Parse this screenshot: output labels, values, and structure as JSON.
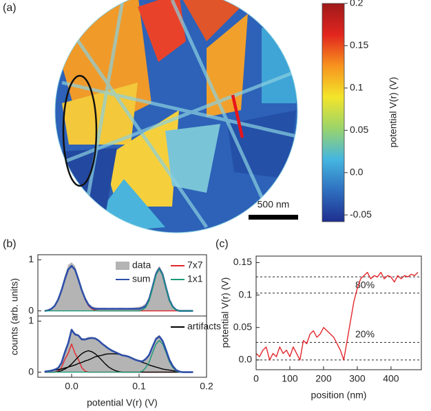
{
  "chart_data": [
    {
      "type": "heatmap",
      "label": "(a)",
      "scale_bar": "500 nm",
      "colorbar": {
        "label": "potential V(r) (V)",
        "lim": [
          -0.058,
          0.2
        ],
        "ticks": [
          -0.05,
          {
            "value": 0,
            "label": "0.0"
          },
          0.05,
          0.1,
          0.15,
          0.2
        ],
        "colormap": [
          "#1e2f8f",
          "#2f6fc0",
          "#45b6e0",
          "#9bd46a",
          "#f3e52a",
          "#f7931e",
          "#e2251f",
          "#9e1a1a"
        ]
      }
    },
    {
      "type": "line",
      "label": "(b)",
      "ylabel": "counts (arb. units)",
      "xlim": [
        -0.05,
        0.2
      ],
      "ylim": [
        -0.1,
        1.1
      ],
      "yticks": [
        0,
        1
      ],
      "x": [
        -0.04,
        -0.035,
        -0.03,
        -0.025,
        -0.02,
        -0.015,
        -0.01,
        -0.005,
        0,
        0.005,
        0.01,
        0.015,
        0.02,
        0.025,
        0.03,
        0.035,
        0.04,
        0.045,
        0.05,
        0.055,
        0.06,
        0.065,
        0.07,
        0.075,
        0.08,
        0.085,
        0.09,
        0.095,
        0.1,
        0.105,
        0.11,
        0.115,
        0.12,
        0.125,
        0.13,
        0.135,
        0.14,
        0.145,
        0.15,
        0.155,
        0.16,
        0.165,
        0.17,
        0.175,
        0.18
      ],
      "series": [
        {
          "name": "data",
          "color": "#b4b4b4",
          "style": "area",
          "values": [
            0.01,
            0.02,
            0.05,
            0.12,
            0.25,
            0.45,
            0.7,
            0.9,
            0.95,
            0.88,
            0.68,
            0.46,
            0.28,
            0.15,
            0.09,
            0.07,
            0.06,
            0.06,
            0.06,
            0.05,
            0.06,
            0.05,
            0.06,
            0.06,
            0.05,
            0.06,
            0.06,
            0.07,
            0.08,
            0.1,
            0.15,
            0.28,
            0.52,
            0.78,
            0.88,
            0.76,
            0.48,
            0.22,
            0.08,
            0.03,
            0.01,
            0,
            0,
            0,
            0
          ]
        },
        {
          "name": "7x7",
          "color": "#e3262b",
          "style": "line",
          "values": [
            0,
            0.01,
            0.04,
            0.1,
            0.22,
            0.4,
            0.62,
            0.81,
            0.88,
            0.81,
            0.62,
            0.4,
            0.22,
            0.1,
            0.04,
            0.01,
            0,
            0,
            0,
            0,
            0,
            0,
            0,
            0,
            0,
            0,
            0,
            0,
            0,
            0,
            0,
            0,
            0,
            0,
            0,
            0,
            0,
            0,
            0,
            0,
            0,
            0,
            0,
            0,
            0
          ]
        },
        {
          "name": "sum",
          "color": "#2e4fa8",
          "style": "line",
          "values": [
            0,
            0.01,
            0.04,
            0.1,
            0.22,
            0.4,
            0.62,
            0.81,
            0.88,
            0.81,
            0.62,
            0.41,
            0.24,
            0.12,
            0.06,
            0.04,
            0.04,
            0.04,
            0.04,
            0.04,
            0.04,
            0.04,
            0.04,
            0.04,
            0.04,
            0.04,
            0.04,
            0.04,
            0.04,
            0.06,
            0.1,
            0.23,
            0.47,
            0.72,
            0.83,
            0.71,
            0.45,
            0.21,
            0.08,
            0.02,
            0,
            0,
            0,
            0,
            0
          ]
        },
        {
          "name": "1x1",
          "color": "#1a9a78",
          "style": "line",
          "values": [
            0,
            0,
            0,
            0,
            0,
            0,
            0,
            0,
            0,
            0,
            0,
            0,
            0,
            0,
            0,
            0,
            0,
            0,
            0,
            0,
            0,
            0,
            0,
            0,
            0,
            0,
            0,
            0,
            0,
            0.02,
            0.07,
            0.2,
            0.44,
            0.7,
            0.82,
            0.7,
            0.44,
            0.2,
            0.07,
            0.02,
            0,
            0,
            0,
            0,
            0
          ]
        }
      ]
    },
    {
      "type": "line",
      "xlabel": "potential V(r) (V)",
      "xlim": [
        -0.05,
        0.2
      ],
      "xticks": [
        {
          "value": 0,
          "label": "0.0"
        },
        0.1,
        0.2
      ],
      "ylim": [
        -0.1,
        1.1
      ],
      "yticks": [
        0,
        1
      ],
      "x": [
        -0.04,
        -0.035,
        -0.03,
        -0.025,
        -0.02,
        -0.015,
        -0.01,
        -0.005,
        0,
        0.005,
        0.01,
        0.015,
        0.02,
        0.025,
        0.03,
        0.035,
        0.04,
        0.045,
        0.05,
        0.055,
        0.06,
        0.065,
        0.07,
        0.075,
        0.08,
        0.085,
        0.09,
        0.095,
        0.1,
        0.105,
        0.11,
        0.115,
        0.12,
        0.125,
        0.13,
        0.135,
        0.14,
        0.145,
        0.15,
        0.155,
        0.16,
        0.165,
        0.17,
        0.175,
        0.18
      ],
      "series": [
        {
          "color": "#b4b4b4",
          "style": "area",
          "values": [
            0.02,
            0.03,
            0.05,
            0.07,
            0.1,
            0.2,
            0.42,
            0.6,
            0.86,
            0.77,
            0.74,
            0.67,
            0.66,
            0.69,
            0.69,
            0.68,
            0.64,
            0.58,
            0.53,
            0.48,
            0.44,
            0.41,
            0.38,
            0.35,
            0.34,
            0.32,
            0.29,
            0.26,
            0.24,
            0.23,
            0.28,
            0.36,
            0.53,
            0.68,
            0.73,
            0.64,
            0.45,
            0.26,
            0.14,
            0.05,
            0.02,
            0.01,
            0,
            0,
            0
          ]
        },
        {
          "color": "#e3262b",
          "style": "line",
          "values": [
            0,
            0,
            0,
            0,
            0.02,
            0.09,
            0.25,
            0.37,
            0.55,
            0.37,
            0.25,
            0.09,
            0.02,
            0,
            0,
            0,
            0,
            0,
            0,
            0,
            0,
            0,
            0,
            0,
            0,
            0,
            0,
            0,
            0,
            0,
            0,
            0,
            0,
            0,
            0,
            0,
            0,
            0,
            0,
            0,
            0,
            0,
            0,
            0,
            0
          ]
        },
        {
          "name": "artifacts",
          "color": "#000000",
          "style": "line",
          "values": [
            0,
            0,
            0,
            0,
            0.01,
            0.03,
            0.06,
            0.1,
            0.16,
            0.23,
            0.3,
            0.36,
            0.4,
            0.42,
            0.4,
            0.36,
            0.3,
            0.23,
            0.16,
            0.1,
            0.06,
            0.03,
            0.01,
            0,
            0,
            0,
            0,
            0,
            0,
            0,
            0,
            0,
            0,
            0,
            0,
            0,
            0,
            0,
            0,
            0,
            0,
            0,
            0,
            0,
            0
          ]
        },
        {
          "color": "#000000",
          "style": "line",
          "values": [
            0.01,
            0.02,
            0.03,
            0.04,
            0.05,
            0.06,
            0.08,
            0.1,
            0.12,
            0.14,
            0.17,
            0.19,
            0.22,
            0.24,
            0.27,
            0.3,
            0.32,
            0.33,
            0.35,
            0.36,
            0.36,
            0.36,
            0.35,
            0.33,
            0.32,
            0.3,
            0.27,
            0.24,
            0.22,
            0.19,
            0.17,
            0.14,
            0.12,
            0.1,
            0.08,
            0.06,
            0.05,
            0.04,
            0.03,
            0.02,
            0.01,
            0,
            0,
            0,
            0
          ]
        },
        {
          "color": "#1a9a78",
          "style": "line",
          "values": [
            0,
            0,
            0,
            0,
            0,
            0,
            0,
            0,
            0,
            0,
            0,
            0,
            0,
            0,
            0,
            0,
            0,
            0,
            0,
            0,
            0,
            0,
            0,
            0,
            0,
            0,
            0,
            0,
            0,
            0.02,
            0.09,
            0.2,
            0.38,
            0.55,
            0.62,
            0.55,
            0.38,
            0.2,
            0.09,
            0.02,
            0,
            0,
            0,
            0,
            0
          ]
        },
        {
          "color": "#2e4fa8",
          "style": "line",
          "values": [
            0.01,
            0.02,
            0.03,
            0.05,
            0.08,
            0.18,
            0.39,
            0.57,
            0.83,
            0.74,
            0.72,
            0.64,
            0.64,
            0.66,
            0.67,
            0.66,
            0.62,
            0.56,
            0.51,
            0.46,
            0.42,
            0.39,
            0.36,
            0.33,
            0.32,
            0.3,
            0.27,
            0.24,
            0.22,
            0.21,
            0.26,
            0.34,
            0.5,
            0.65,
            0.7,
            0.61,
            0.43,
            0.24,
            0.12,
            0.04,
            0.01,
            0,
            0,
            0,
            0
          ]
        }
      ]
    },
    {
      "type": "line",
      "label": "(c)",
      "xlabel": "position (nm)",
      "ylabel": "potential V(r) (V)",
      "xlim": [
        0,
        490
      ],
      "xticks": [
        0,
        100,
        200,
        300,
        400
      ],
      "ylim": [
        -0.015,
        0.16
      ],
      "yticks": [
        {
          "value": 0,
          "label": "0.0"
        },
        0.05,
        0.1,
        0.15
      ],
      "hlines": [
        {
          "value": 0.128
        },
        {
          "value": 0.103,
          "label": "80%"
        },
        {
          "value": 0.027,
          "label": "20%"
        },
        {
          "value": 0
        }
      ],
      "x": [
        0,
        10,
        20,
        30,
        40,
        50,
        60,
        70,
        80,
        90,
        100,
        110,
        120,
        130,
        140,
        150,
        160,
        170,
        180,
        190,
        200,
        210,
        220,
        230,
        240,
        250,
        260,
        270,
        280,
        290,
        300,
        310,
        320,
        330,
        340,
        350,
        360,
        370,
        380,
        390,
        400,
        410,
        420,
        430,
        440,
        450,
        460,
        470,
        480
      ],
      "series": [
        {
          "color": "#e3262b",
          "style": "line",
          "values": [
            0.01,
            0.005,
            0.015,
            0.02,
            0,
            0.01,
            0.005,
            0.02,
            0.01,
            0.015,
            0.005,
            0.02,
            0.01,
            0,
            0.03,
            0.025,
            0.04,
            0.045,
            0.035,
            0.04,
            0.05,
            0.045,
            0.04,
            0.035,
            0.025,
            0.015,
            0,
            0.03,
            0.06,
            0.09,
            0.11,
            0.125,
            0.13,
            0.135,
            0.125,
            0.13,
            0.128,
            0.135,
            0.125,
            0.13,
            0.128,
            0.12,
            0.13,
            0.125,
            0.13,
            0.128,
            0.132,
            0.13,
            0.135
          ]
        }
      ]
    }
  ]
}
